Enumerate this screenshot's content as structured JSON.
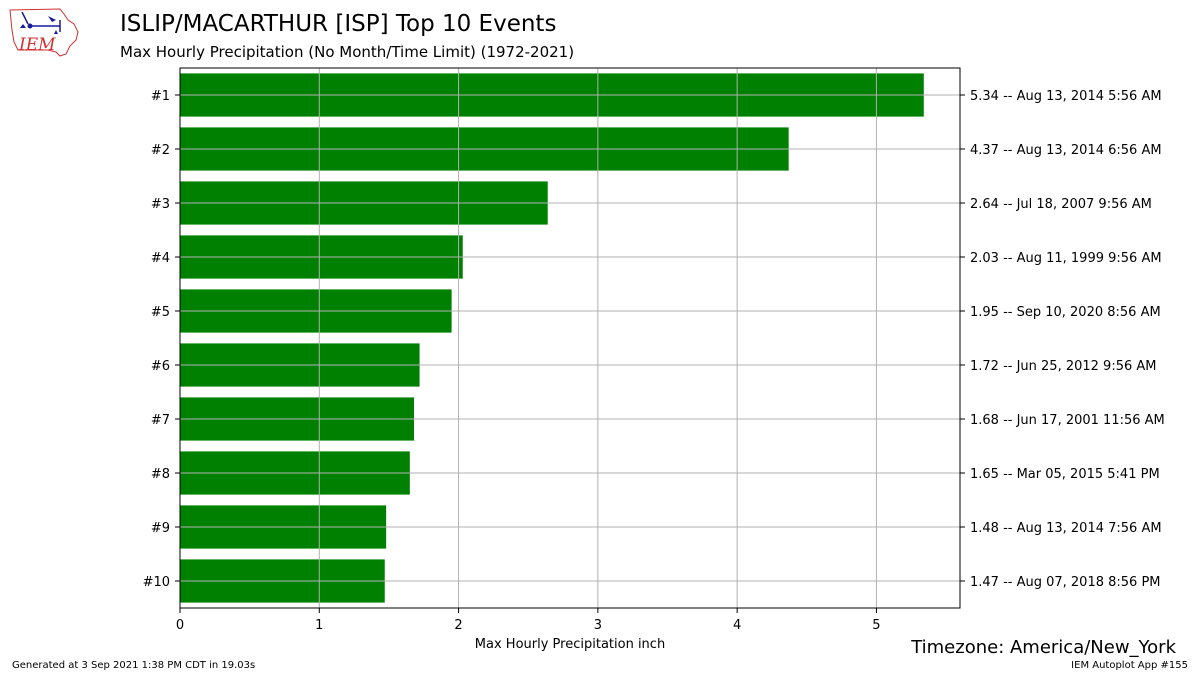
{
  "header": {
    "logo_text": "IEM",
    "title": "ISLIP/MACARTHUR [ISP] Top 10 Events",
    "subtitle": "Max Hourly Precipitation  (No Month/Time Limit) (1972-2021)"
  },
  "footer": {
    "timezone": "Timezone: America/New_York",
    "generated": "Generated at 3 Sep 2021 1:38 PM CDT in 19.03s",
    "app": "IEM Autoplot App #155"
  },
  "colors": {
    "bar": "#008000",
    "grid": "#b0b0b0",
    "logo_red": "#d03030",
    "logo_blue": "#1a1aa0"
  },
  "chart_data": {
    "type": "bar",
    "orientation": "horizontal",
    "categories": [
      "#1",
      "#2",
      "#3",
      "#4",
      "#5",
      "#6",
      "#7",
      "#8",
      "#9",
      "#10"
    ],
    "values": [
      5.34,
      4.37,
      2.64,
      2.03,
      1.95,
      1.72,
      1.68,
      1.65,
      1.48,
      1.47
    ],
    "right_labels": [
      "5.34 -- Aug 13, 2014 5:56 AM",
      "4.37 -- Aug 13, 2014 6:56 AM",
      "2.64 -- Jul 18, 2007 9:56 AM",
      "2.03 -- Aug 11, 1999 9:56 AM",
      "1.95 -- Sep 10, 2020 8:56 AM",
      "1.72 -- Jun 25, 2012 9:56 AM",
      "1.68 -- Jun 17, 2001 11:56 AM",
      "1.65 -- Mar 05, 2015 5:41 PM",
      "1.48 -- Aug 13, 2014 7:56 AM",
      "1.47 -- Aug 07, 2018 8:56 PM"
    ],
    "xlabel": "Max Hourly Precipitation inch",
    "ylabel": "",
    "xlim": [
      0,
      5.6
    ],
    "xticks": [
      0,
      1,
      2,
      3,
      4,
      5
    ],
    "grid": true,
    "legend": "none"
  }
}
